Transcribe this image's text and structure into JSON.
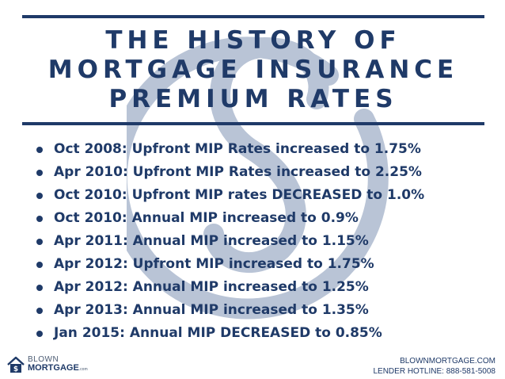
{
  "colors": {
    "primary": "#1f3a68",
    "watermark": "#b9c4d6",
    "background": "#ffffff"
  },
  "title": {
    "line1": "THE HISTORY OF",
    "line2": "MORTGAGE INSURANCE",
    "line3": "PREMIUM RATES"
  },
  "bullets": [
    "Oct 2008: Upfront MIP Rates increased to 1.75%",
    "Apr 2010: Upfront MIP Rates increased to 2.25%",
    "Oct 2010: Upfront MIP rates DECREASED to 1.0%",
    "Oct 2010: Annual MIP increased to 0.9%",
    "Apr 2011: Annual MIP increased to 1.15%",
    "Apr 2012: Upfront MIP increased to 1.75%",
    "Apr 2012: Annual MIP increased to 1.25%",
    "Apr 2013: Annual MIP increased to 1.35%",
    "Jan 2015: Annual MIP DECREASED to 0.85%"
  ],
  "logo": {
    "icon": "house-dollar-icon",
    "line1": "BLOWN",
    "line2": "MORTGAGE",
    "suffix": ".com"
  },
  "footer": {
    "website": "BLOWNMORTGAGE.COM",
    "hotline": "LENDER HOTLINE: 888-581-5008"
  },
  "watermark_icon": "dollar-s-icon"
}
